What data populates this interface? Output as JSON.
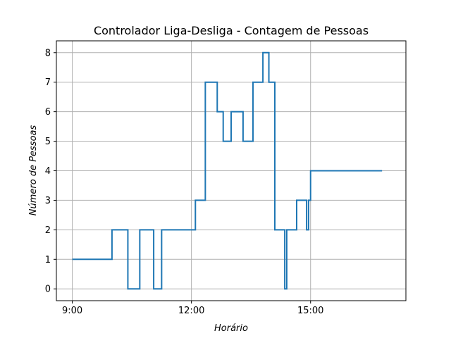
{
  "chart_data": {
    "type": "line",
    "title": "Controlador Liga-Desliga - Contagem de Pessoas",
    "xlabel": "Horário",
    "ylabel": "Número de Pessoas",
    "xlim": [
      "8:36",
      "17:24"
    ],
    "ylim": [
      -0.4,
      8.4
    ],
    "x_ticks": [
      {
        "time": "9:00",
        "label": "9:00"
      },
      {
        "time": "12:00",
        "label": "12:00"
      },
      {
        "time": "15:00",
        "label": "15:00"
      }
    ],
    "y_ticks": [
      0,
      1,
      2,
      3,
      4,
      5,
      6,
      7,
      8
    ],
    "grid": true,
    "series": [
      {
        "color": "#1f77b4",
        "points": [
          [
            "9:00",
            1
          ],
          [
            "10:00",
            1
          ],
          [
            "10:00",
            2
          ],
          [
            "10:24",
            2
          ],
          [
            "10:24",
            0
          ],
          [
            "10:42",
            0
          ],
          [
            "10:42",
            2
          ],
          [
            "11:03",
            2
          ],
          [
            "11:03",
            0
          ],
          [
            "11:15",
            0
          ],
          [
            "11:15",
            2
          ],
          [
            "12:06",
            2
          ],
          [
            "12:06",
            3
          ],
          [
            "12:21",
            3
          ],
          [
            "12:21",
            7
          ],
          [
            "12:39",
            7
          ],
          [
            "12:39",
            6
          ],
          [
            "12:48",
            6
          ],
          [
            "12:48",
            5
          ],
          [
            "13:00",
            5
          ],
          [
            "13:00",
            6
          ],
          [
            "13:18",
            6
          ],
          [
            "13:18",
            5
          ],
          [
            "13:33",
            5
          ],
          [
            "13:33",
            7
          ],
          [
            "13:48",
            7
          ],
          [
            "13:48",
            8
          ],
          [
            "13:57",
            8
          ],
          [
            "13:57",
            7
          ],
          [
            "14:06",
            7
          ],
          [
            "14:06",
            2
          ],
          [
            "14:21",
            2
          ],
          [
            "14:21",
            0
          ],
          [
            "14:24",
            0
          ],
          [
            "14:24",
            2
          ],
          [
            "14:39",
            2
          ],
          [
            "14:39",
            3
          ],
          [
            "14:54",
            3
          ],
          [
            "14:54",
            2
          ],
          [
            "14:57",
            2
          ],
          [
            "14:57",
            3
          ],
          [
            "15:00",
            3
          ],
          [
            "15:00",
            4
          ],
          [
            "16:48",
            4
          ]
        ]
      }
    ]
  }
}
